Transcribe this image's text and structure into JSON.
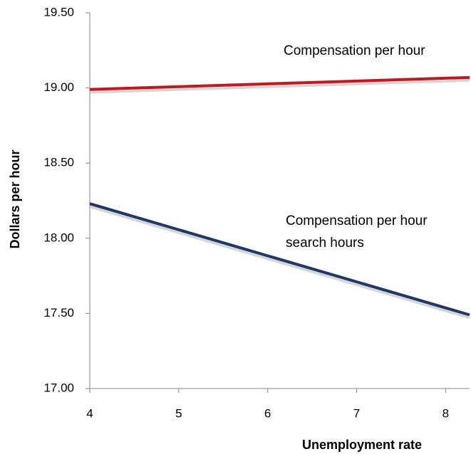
{
  "chart_data": {
    "type": "line",
    "x_label": "Unemployment rate",
    "y_label": "Dollars per hour",
    "xlim": [
      4,
      8.27
    ],
    "xticks": [
      4,
      5,
      6,
      7,
      8
    ],
    "ylim": [
      17,
      19.5
    ],
    "yticks": [
      {
        "value": 17,
        "label": "17.00"
      },
      {
        "value": 17.5,
        "label": "17.50"
      },
      {
        "value": 18,
        "label": "18.00"
      },
      {
        "value": 18.5,
        "label": "18.50"
      },
      {
        "value": 19,
        "label": "19.00"
      },
      {
        "value": 19.5,
        "label": "19.50"
      }
    ],
    "grid": false,
    "series": [
      {
        "color": "#c0191e",
        "x": [
          4,
          8.27
        ],
        "values": [
          18.99,
          19.07
        ]
      },
      {
        "color": "#1f3864",
        "x": [
          4,
          8.27
        ],
        "values": [
          18.23,
          17.49
        ]
      }
    ],
    "annotations": [
      {
        "lines": [
          "Compensation per hour"
        ]
      },
      {
        "lines": [
          "Compensation per hour",
          "search hours"
        ]
      }
    ]
  }
}
